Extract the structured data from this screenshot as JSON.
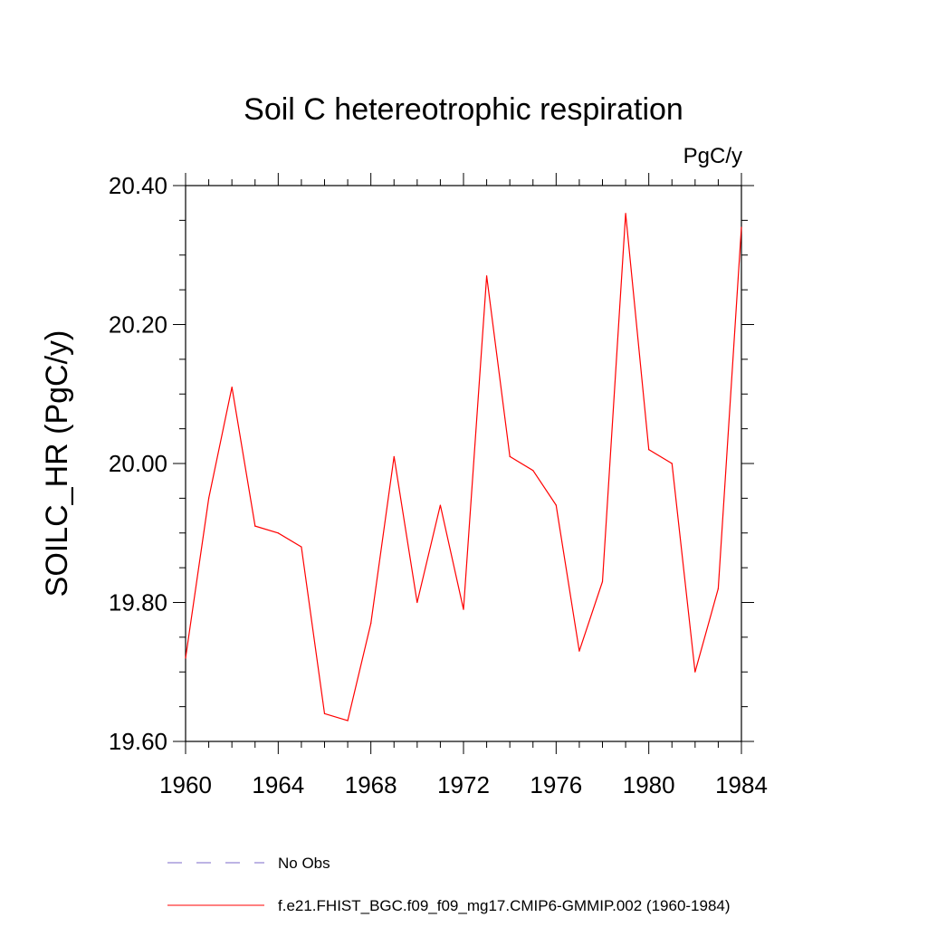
{
  "chart_data": {
    "type": "line",
    "title": "Soil C hetereotrophic respiration",
    "units_label": "PgC/y",
    "xlabel": "",
    "ylabel": "SOILC_HR  (PgC/y)",
    "xlim": [
      1960,
      1984
    ],
    "ylim": [
      19.6,
      20.4
    ],
    "x_ticks": [
      "1960",
      "1964",
      "1968",
      "1972",
      "1976",
      "1980",
      "1984"
    ],
    "y_ticks": [
      "19.60",
      "19.80",
      "20.00",
      "20.20",
      "20.40"
    ],
    "grid": false,
    "legend_position": "bottom",
    "x": [
      1960,
      1961,
      1962,
      1963,
      1964,
      1965,
      1966,
      1967,
      1968,
      1969,
      1970,
      1971,
      1972,
      1973,
      1974,
      1975,
      1976,
      1977,
      1978,
      1979,
      1980,
      1981,
      1982,
      1983,
      1984
    ],
    "series": [
      {
        "name": "f.e21.FHIST_BGC.f09_f09_mg17.CMIP6-GMMIP.002 (1960-1984)",
        "color": "#ff0000",
        "dash": "solid",
        "values": [
          19.72,
          19.95,
          20.11,
          19.91,
          19.9,
          19.88,
          19.64,
          19.63,
          19.77,
          20.01,
          19.8,
          19.94,
          19.79,
          20.27,
          20.01,
          19.99,
          19.94,
          19.73,
          19.83,
          20.36,
          20.02,
          20.0,
          19.7,
          19.82,
          20.34
        ]
      }
    ],
    "legend": [
      {
        "label": "No Obs",
        "color": "#7b68c8",
        "dash": "dashed"
      },
      {
        "label": "f.e21.FHIST_BGC.f09_f09_mg17.CMIP6-GMMIP.002 (1960-1984)",
        "color": "#ff0000",
        "dash": "solid"
      }
    ]
  }
}
